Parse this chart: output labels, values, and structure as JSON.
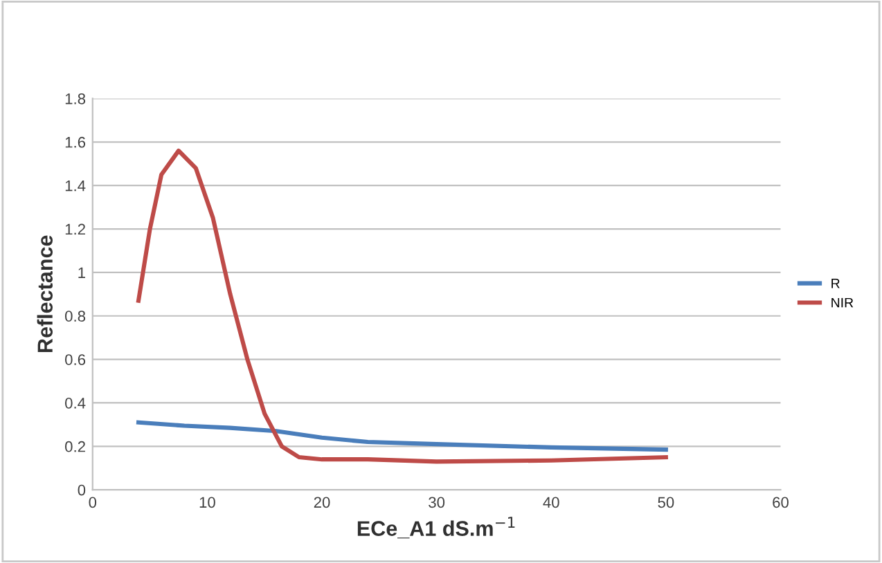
{
  "chart_data": {
    "type": "line",
    "xlabel": "ECe_A1 dS.m$^{−1}$",
    "ylabel": "Reflectance",
    "xlim": [
      0,
      60
    ],
    "xticks": [
      0,
      10,
      20,
      30,
      40,
      50,
      60
    ],
    "ylim": [
      0,
      1.8
    ],
    "yticks": [
      0,
      0.2,
      0.4,
      0.6,
      0.8,
      1,
      1.2,
      1.4,
      1.6,
      1.8
    ],
    "grid": "y",
    "legend": "right",
    "marker": "none",
    "line_style": "solid",
    "series": [
      {
        "name": "R",
        "color": "#4a7ebb",
        "x": [
          4,
          8,
          12,
          16,
          18,
          20,
          24,
          30,
          40,
          50
        ],
        "values": [
          0.31,
          0.295,
          0.285,
          0.27,
          0.255,
          0.24,
          0.22,
          0.21,
          0.195,
          0.185
        ]
      },
      {
        "name": "NIR",
        "color": "#be4b48",
        "x": [
          4,
          5,
          6,
          7.5,
          9,
          10.5,
          12,
          13.5,
          15,
          16.5,
          18,
          20,
          24,
          30,
          40,
          50
        ],
        "values": [
          0.87,
          1.2,
          1.45,
          1.56,
          1.48,
          1.25,
          0.9,
          0.6,
          0.35,
          0.2,
          0.15,
          0.14,
          0.14,
          0.13,
          0.135,
          0.15
        ]
      }
    ]
  }
}
